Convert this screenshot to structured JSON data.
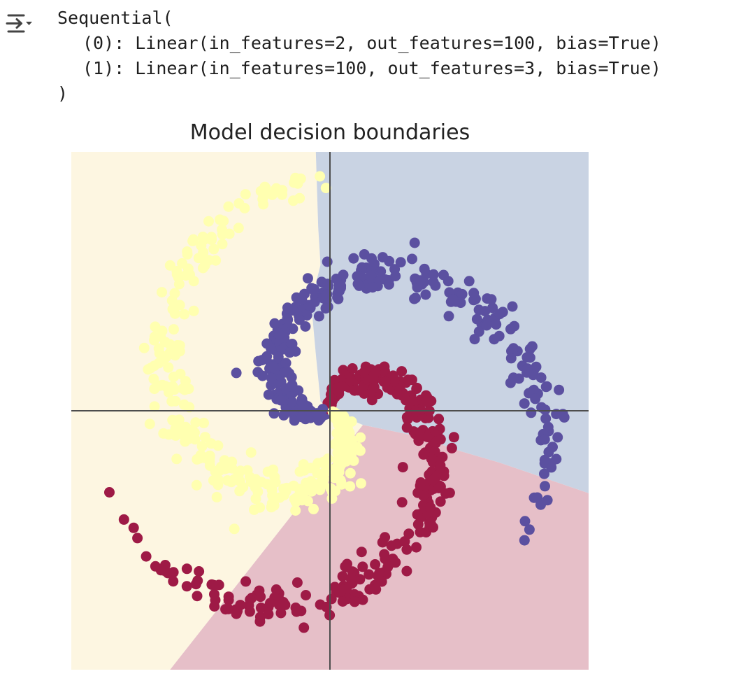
{
  "output": {
    "toggle_icon": "output-collapse-icon",
    "lines": [
      "Sequential(",
      "(0): Linear(in_features=2, out_features=100, bias=True)",
      "(1): Linear(in_features=100, out_features=3, bias=True)",
      ")"
    ]
  },
  "chart_data": {
    "type": "scatter",
    "title": "Model decision boundaries",
    "xlabel": "",
    "ylabel": "",
    "xlim": [
      -1.1,
      1.1
    ],
    "ylim": [
      -1.1,
      1.1
    ],
    "axes_visible": false,
    "reference_lines": {
      "x": 0,
      "y": 0,
      "color": "#4d4d4d"
    },
    "grid": false,
    "legend": "none",
    "series": [
      {
        "class": 0,
        "color": "#9e1a46",
        "region_color": "#e6bfc8",
        "points": 1000
      },
      {
        "class": 1,
        "color": "#5b50a0",
        "region_color": "#c9d3e3",
        "points": 1000
      },
      {
        "class": 2,
        "color": "#ffffb0",
        "region_color": "#fdf6e1",
        "points": 1000
      }
    ],
    "colors": {
      "class0": "#9e1a46",
      "class1": "#5b50a0",
      "class2": "#ffffb0",
      "region0": "#e6bfc8",
      "region1": "#c9d3e3",
      "region2": "#fdf6e1"
    }
  }
}
